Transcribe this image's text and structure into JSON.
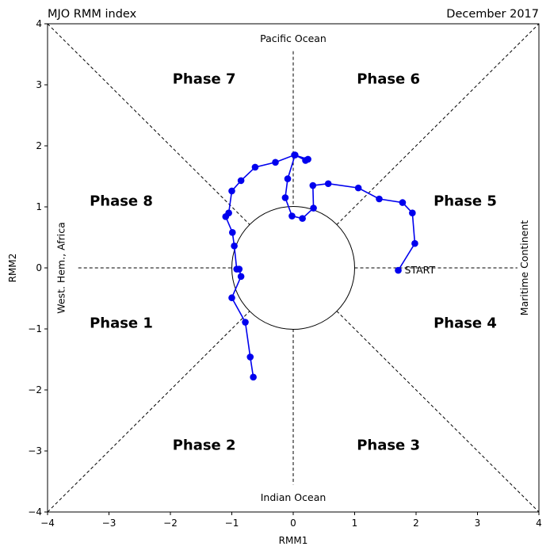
{
  "chart_data": {
    "type": "scatter",
    "title_left": "MJO RMM index",
    "title_right": "December 2017",
    "xlabel": "RMM1",
    "ylabel": "RMM2",
    "xlim": [
      -4,
      4
    ],
    "ylim": [
      -4,
      4
    ],
    "xticks": [
      "−4",
      "−3",
      "−2",
      "−1",
      "0",
      "1",
      "2",
      "3",
      "4"
    ],
    "yticks": [
      "−4",
      "−3",
      "−2",
      "−1",
      "0",
      "1",
      "2",
      "3",
      "4"
    ],
    "grid": false,
    "unit_circle_radius": 1,
    "phases": [
      {
        "label": "Phase 1",
        "x": -2.8,
        "y": -0.9
      },
      {
        "label": "Phase 2",
        "x": -1.45,
        "y": -2.9
      },
      {
        "label": "Phase 3",
        "x": 1.55,
        "y": -2.9
      },
      {
        "label": "Phase 4",
        "x": 2.8,
        "y": -0.9
      },
      {
        "label": "Phase 5",
        "x": 2.8,
        "y": 1.1
      },
      {
        "label": "Phase 6",
        "x": 1.55,
        "y": 3.1
      },
      {
        "label": "Phase 7",
        "x": -1.45,
        "y": 3.1
      },
      {
        "label": "Phase 8",
        "x": -2.8,
        "y": 1.1
      }
    ],
    "regions": {
      "top": "Pacific Ocean",
      "bottom": "Indian Ocean",
      "left": "West. Hem., Africa",
      "right": "Maritime Continent"
    },
    "start_label": "START",
    "series": [
      {
        "color": "#0000ee",
        "x": [
          1.71,
          1.98,
          1.94,
          1.78,
          1.4,
          1.06,
          0.57,
          0.32,
          0.33,
          0.15,
          -0.02,
          -0.13,
          -0.09,
          0.03,
          0.2,
          0.24,
          0.02,
          -0.29,
          -0.62,
          -0.85,
          -1.0,
          -1.05,
          -1.1,
          -0.99,
          -0.96,
          -0.92,
          -0.88,
          -0.85,
          -1.0,
          -0.78,
          -0.7,
          -0.65
        ],
        "y": [
          -0.04,
          0.4,
          0.9,
          1.07,
          1.13,
          1.31,
          1.38,
          1.35,
          0.98,
          0.81,
          0.85,
          1.15,
          1.46,
          1.85,
          1.76,
          1.78,
          1.85,
          1.73,
          1.65,
          1.43,
          1.26,
          0.9,
          0.84,
          0.58,
          0.36,
          -0.02,
          -0.02,
          -0.14,
          -0.49,
          -0.89,
          -1.46,
          -1.79
        ]
      }
    ]
  }
}
